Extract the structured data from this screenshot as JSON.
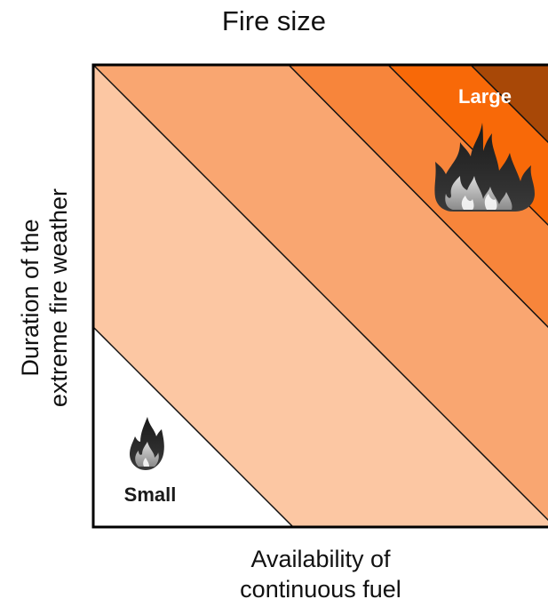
{
  "title": "Fire size",
  "ylabel": [
    "Duration of the",
    "extreme fire weather"
  ],
  "xlabel": [
    "Availability of",
    "continuous fuel"
  ],
  "labels": {
    "small": "Small",
    "large": "Large"
  },
  "colors": {
    "band_0": "#ffffff",
    "band_1": "#fcc7a3",
    "band_2": "#f9a671",
    "band_3": "#f7853b",
    "band_4": "#f86908",
    "band_5": "#a84807",
    "large_label": "#ffffff",
    "small_label": "#1a1a1a"
  },
  "icons": [
    "small-flame-icon",
    "large-flames-icon"
  ]
}
